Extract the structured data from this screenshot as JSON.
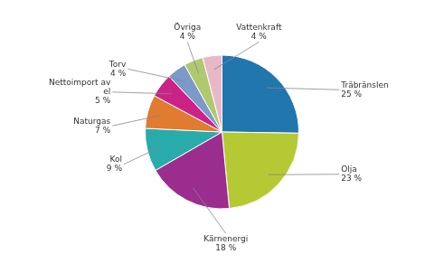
{
  "chart_data": {
    "type": "pie",
    "categories": [
      "Träbränslen",
      "Olja",
      "Kärnenergi",
      "Kol",
      "Naturgas",
      "Nettoimport av\nel",
      "Torv",
      "Övriga",
      "Vattenkraft"
    ],
    "values": [
      25,
      23,
      18,
      9,
      7,
      5,
      4,
      4,
      4
    ],
    "value_labels": [
      "25 %",
      "23 %",
      "18 %",
      "9 %",
      "7 %",
      "5 %",
      "4 %",
      "4 %",
      "4 %"
    ],
    "colors": [
      "#2176ae",
      "#b5c935",
      "#9b2d8e",
      "#2aabab",
      "#e07b30",
      "#cc2288",
      "#7b9ac8",
      "#b0c870",
      "#e8b8c8"
    ],
    "data_labels": true,
    "legend": false
  }
}
